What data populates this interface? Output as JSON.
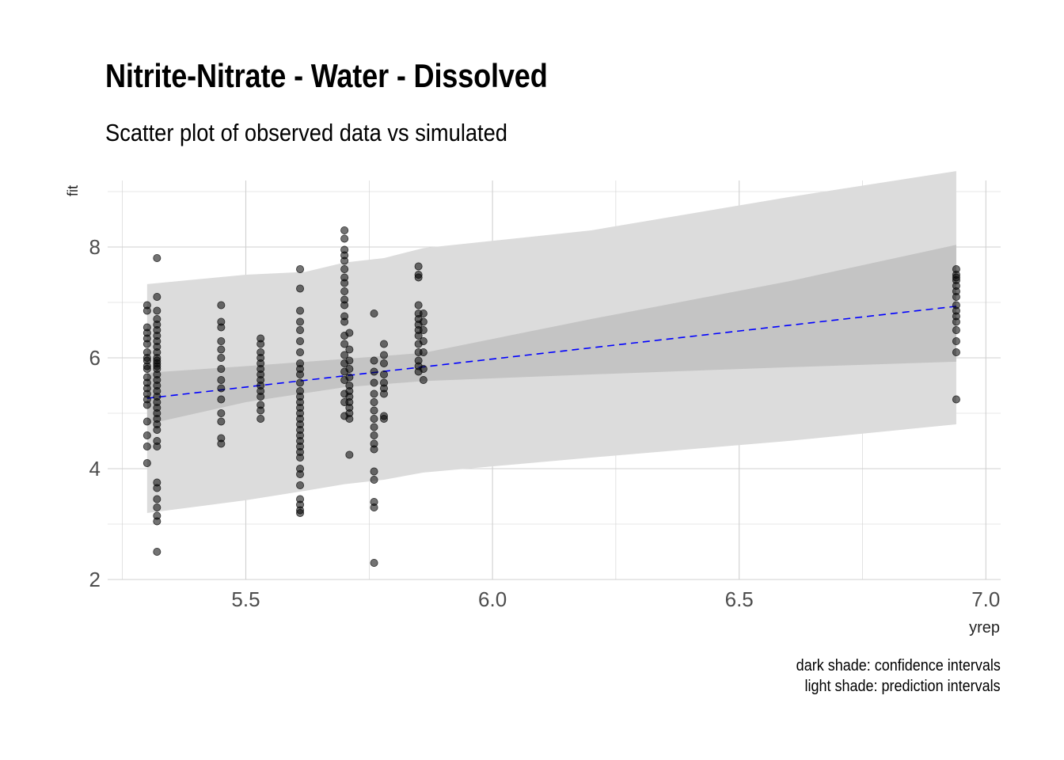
{
  "chart_data": {
    "type": "scatter",
    "title": "Nitrite-Nitrate - Water - Dissolved",
    "subtitle": "Scatter plot of observed data vs simulated",
    "xlabel": "yrep",
    "ylabel": "fit",
    "xlim": [
      5.22,
      7.03
    ],
    "ylim": [
      2.0,
      9.2
    ],
    "x_ticks": [
      5.5,
      6.0,
      6.5,
      7.0
    ],
    "x_tick_labels": [
      "5.5",
      "6.0",
      "6.5",
      "7.0"
    ],
    "y_ticks": [
      2,
      4,
      6,
      8
    ],
    "y_tick_labels": [
      "2",
      "4",
      "6",
      "8"
    ],
    "grid": true,
    "caption": [
      "dark shade: confidence intervals",
      "light shade: prediction intervals"
    ],
    "colors": {
      "points": "#000000",
      "fit_line": "#0000ff",
      "confidence_band": "#c4c4c4",
      "prediction_band": "#dcdcdc",
      "grid": "#d0d0d0"
    },
    "fit_line": {
      "style": "dashed",
      "x": [
        5.3,
        6.94
      ],
      "y": [
        5.27,
        6.93
      ]
    },
    "confidence_band": {
      "x": [
        5.3,
        5.5,
        5.7,
        5.86,
        6.2,
        6.6,
        6.94
      ],
      "lower": [
        4.8,
        5.2,
        5.47,
        5.58,
        5.7,
        5.83,
        5.93
      ],
      "upper": [
        5.73,
        5.85,
        5.98,
        6.09,
        6.7,
        7.38,
        8.04
      ]
    },
    "prediction_band": {
      "x": [
        5.3,
        5.5,
        5.62,
        5.7,
        5.78,
        5.86,
        6.2,
        6.6,
        6.94
      ],
      "lower": [
        3.2,
        3.43,
        3.6,
        3.72,
        3.8,
        3.93,
        4.2,
        4.5,
        4.8
      ],
      "upper": [
        7.33,
        7.5,
        7.55,
        7.72,
        7.8,
        7.98,
        8.3,
        8.9,
        9.37
      ]
    },
    "series": [
      {
        "x": 5.3,
        "y": [
          6.95,
          6.85,
          6.55,
          6.45,
          6.35,
          6.25,
          6.1,
          6.0,
          5.95,
          5.85,
          5.8,
          5.65,
          5.55,
          5.45,
          5.35,
          5.25,
          5.15,
          4.85,
          4.6,
          4.4,
          4.1
        ]
      },
      {
        "x": 5.32,
        "y": [
          7.8,
          7.1,
          6.85,
          6.7,
          6.6,
          6.5,
          6.4,
          6.3,
          6.2,
          6.1,
          6.0,
          5.95,
          5.9,
          5.85,
          5.8,
          5.7,
          5.6,
          5.5,
          5.4,
          5.3,
          5.2,
          5.1,
          5.0,
          4.9,
          4.8,
          4.7,
          4.5,
          4.4,
          3.75,
          3.65,
          3.45,
          3.3,
          3.15,
          3.05,
          2.5
        ]
      },
      {
        "x": 5.45,
        "y": [
          6.95,
          6.65,
          6.55,
          6.3,
          6.15,
          6.0,
          5.8,
          5.6,
          5.45,
          5.25,
          5.0,
          4.85,
          4.55,
          4.45
        ]
      },
      {
        "x": 5.53,
        "y": [
          6.35,
          6.25,
          6.1,
          6.0,
          5.9,
          5.8,
          5.7,
          5.6,
          5.5,
          5.4,
          5.3,
          5.15,
          5.05,
          4.9
        ]
      },
      {
        "x": 5.61,
        "y": [
          7.6,
          7.25,
          6.85,
          6.65,
          6.5,
          6.3,
          6.1,
          5.9,
          5.8,
          5.7,
          5.55,
          5.4,
          5.3,
          5.2,
          5.1,
          5.0,
          4.9,
          4.8,
          4.7,
          4.6,
          4.5,
          4.4,
          4.3,
          4.2,
          4.0,
          3.9,
          3.7,
          3.45,
          3.35,
          3.25,
          3.2
        ]
      },
      {
        "x": 5.7,
        "y": [
          8.3,
          8.15,
          7.95,
          7.85,
          7.75,
          7.6,
          7.45,
          7.35,
          7.2,
          7.05,
          6.95,
          6.75,
          6.65,
          6.4,
          6.25,
          6.05,
          5.9,
          5.75,
          5.6,
          5.35,
          5.2,
          4.95
        ]
      },
      {
        "x": 5.71,
        "y": [
          6.45,
          6.15,
          5.95,
          5.8,
          5.65,
          5.5,
          5.4,
          5.3,
          5.2,
          5.1,
          5.0,
          4.9,
          4.25
        ]
      },
      {
        "x": 5.76,
        "y": [
          6.8,
          5.95,
          5.75,
          5.55,
          5.35,
          5.2,
          5.05,
          4.9,
          4.75,
          4.6,
          4.45,
          4.35,
          3.95,
          3.8,
          3.4,
          3.3,
          2.3
        ]
      },
      {
        "x": 5.78,
        "y": [
          6.25,
          6.05,
          5.9,
          5.7,
          5.55,
          5.45,
          5.35,
          4.95,
          4.9
        ]
      },
      {
        "x": 5.85,
        "y": [
          7.65,
          7.5,
          7.45,
          6.95,
          6.8,
          6.7,
          6.6,
          6.5,
          6.4,
          6.25,
          6.1,
          5.95,
          5.85,
          5.75
        ]
      },
      {
        "x": 5.86,
        "y": [
          6.8,
          6.65,
          6.5,
          6.3,
          6.1,
          5.8,
          5.6
        ]
      },
      {
        "x": 6.94,
        "y": [
          7.6,
          7.5,
          7.45,
          7.4,
          7.3,
          7.2,
          7.1,
          6.95,
          6.85,
          6.75,
          6.65,
          6.5,
          6.3,
          6.1,
          5.25
        ]
      }
    ]
  }
}
